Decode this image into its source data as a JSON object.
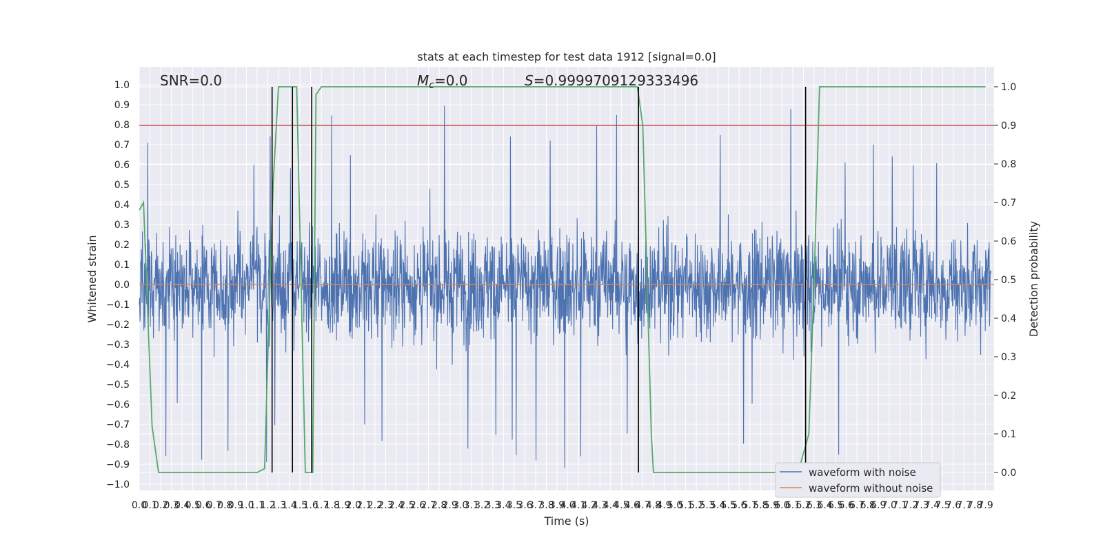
{
  "chart_data": {
    "type": "line",
    "title": "stats at each timestep for test data 1912 [signal=0.0]",
    "xlabel": "Time (s)",
    "ylabel": "Whitened strain",
    "y2label": "Detection probability",
    "xlim": [
      0.0,
      7.95
    ],
    "ylim": [
      -1.05,
      1.07
    ],
    "y2lim": [
      -0.05,
      1.05
    ],
    "grid": true,
    "legend_position": "lower-right",
    "x_ticks": [
      "0.0",
      "0.1",
      "0.2",
      "0.3",
      "0.4",
      "0.5",
      "0.6",
      "0.7",
      "0.8",
      "0.9",
      "1.0",
      "1.1",
      "1.2",
      "1.3",
      "1.4",
      "1.5",
      "1.6",
      "1.7",
      "1.8",
      "1.9",
      "2.0",
      "2.1",
      "2.2",
      "2.3",
      "2.4",
      "2.5",
      "2.6",
      "2.7",
      "2.8",
      "2.9",
      "3.0",
      "3.1",
      "3.2",
      "3.3",
      "3.4",
      "3.5",
      "3.6",
      "3.7",
      "3.8",
      "3.9",
      "4.0",
      "4.1",
      "4.2",
      "4.3",
      "4.4",
      "4.5",
      "4.6",
      "4.7",
      "4.8",
      "4.9",
      "5.0",
      "5.1",
      "5.2",
      "5.3",
      "5.4",
      "5.5",
      "5.6",
      "5.7",
      "5.8",
      "5.9",
      "6.0",
      "6.1",
      "6.2",
      "6.3",
      "6.4",
      "6.5",
      "6.6",
      "6.7",
      "6.8",
      "6.9",
      "7.0",
      "7.1",
      "7.2",
      "7.3",
      "7.4",
      "7.5",
      "7.6",
      "7.7",
      "7.8",
      "7.9"
    ],
    "y_ticks": [
      "1.0",
      "0.9",
      "0.8",
      "0.7",
      "0.6",
      "0.5",
      "0.4",
      "0.3",
      "0.2",
      "0.1",
      "0.0",
      "−0.1",
      "−0.2",
      "−0.3",
      "−0.4",
      "−0.5",
      "−0.6",
      "−0.7",
      "−0.8",
      "−0.9",
      "−1.0"
    ],
    "y2_ticks": [
      "1.0",
      "0.9",
      "0.8",
      "0.7",
      "0.6",
      "0.5",
      "0.4",
      "0.3",
      "0.2",
      "0.1",
      "0.0"
    ],
    "annotations": {
      "snr": "SNR=0.0",
      "mc_symbol": "M",
      "mc_sub": "c",
      "mc_value": "=0.0",
      "s_symbol": "S",
      "s_value": "=0.9999709129333496"
    },
    "series": [
      {
        "name": "waveform with noise",
        "color": "#4c72b0",
        "kind": "noise",
        "envelope": 0.35,
        "peak_max": 0.92
      },
      {
        "name": "waveform without noise",
        "color": "#dd8452",
        "kind": "flat",
        "y": 0.0
      },
      {
        "color": "#55a868",
        "axis": "right",
        "x": [
          0.0,
          0.04,
          0.12,
          0.18,
          0.22,
          0.3,
          1.0,
          1.1,
          1.17,
          1.2,
          1.25,
          1.3,
          1.4,
          1.47,
          1.55,
          1.6,
          1.62,
          1.65,
          1.7,
          2.0,
          4.5,
          4.65,
          4.7,
          4.78,
          4.8,
          5.0,
          6.15,
          6.25,
          6.3,
          6.35,
          7.9
        ],
        "values": [
          0.68,
          0.7,
          0.12,
          0.0,
          0.0,
          0.0,
          0.0,
          0.0,
          0.01,
          0.3,
          0.75,
          1.0,
          1.0,
          1.0,
          0.0,
          0.0,
          0.0,
          0.98,
          1.0,
          1.0,
          1.0,
          1.0,
          0.9,
          0.1,
          0.0,
          0.0,
          0.0,
          0.1,
          0.5,
          1.0,
          1.0
        ]
      }
    ],
    "threshold": {
      "color": "#c44e52",
      "axis": "right",
      "value": 0.9
    },
    "vertical_lines": [
      1.24,
      1.43,
      1.61,
      4.66,
      6.22
    ],
    "vertical_lines_ymin": -0.05
  }
}
